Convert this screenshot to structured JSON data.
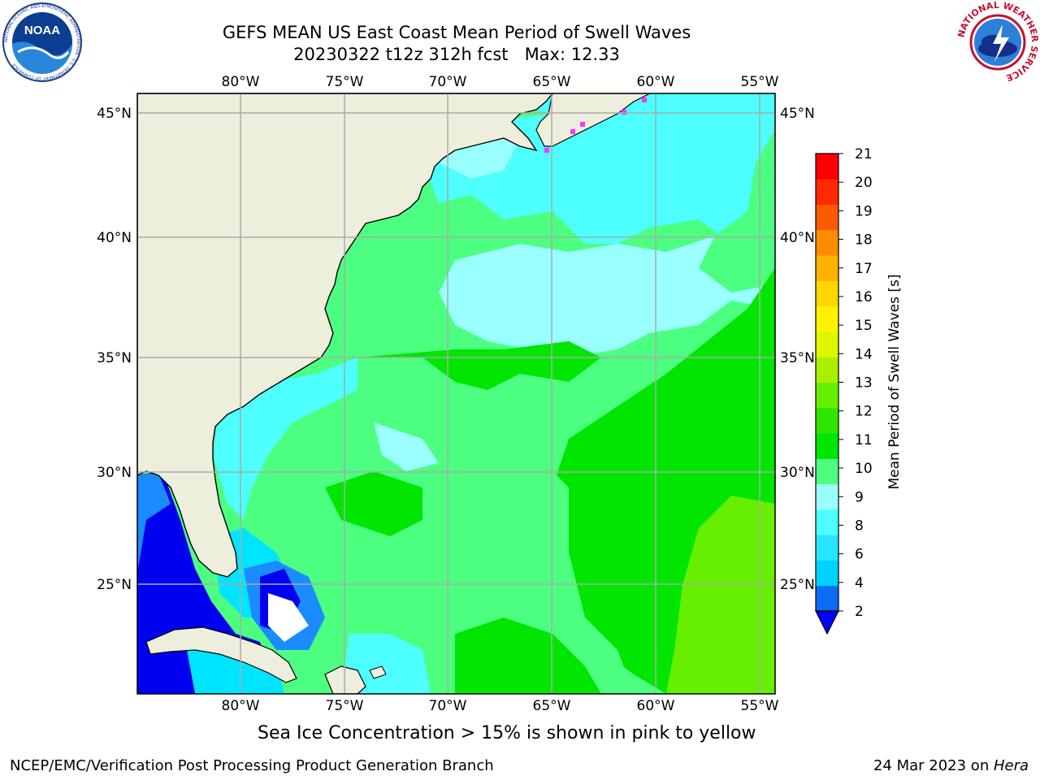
{
  "header": {
    "title_line1": "GEFS MEAN US East Coast Mean Period of Swell Waves",
    "title_line2": "20230322 t12z 312h fcst   Max: 12.33"
  },
  "logos": {
    "left": "NOAA",
    "left_ring_text": "NATIONAL OCEANIC AND ATMOSPHERIC ADMINISTRATION · U.S. DEPARTMENT OF COMMERCE",
    "right_ring_text": "NATIONAL WEATHER SERVICE"
  },
  "axes": {
    "lon_labels": [
      "80°W",
      "75°W",
      "70°W",
      "65°W",
      "60°W",
      "55°W"
    ],
    "lat_labels": [
      "45°N",
      "40°N",
      "35°N",
      "30°N",
      "25°N"
    ]
  },
  "colorbar": {
    "label": "Mean Period of Swell Waves [s]",
    "ticks": [
      "2",
      "4",
      "6",
      "8",
      "9",
      "10",
      "11",
      "12",
      "13",
      "14",
      "15",
      "16",
      "17",
      "18",
      "19",
      "20",
      "21"
    ],
    "colors": [
      "#0a6cf5",
      "#00d2ff",
      "#26e6ff",
      "#4cffff",
      "#99ffff",
      "#4dff80",
      "#00e600",
      "#2ee600",
      "#66ef00",
      "#a8f000",
      "#e0f500",
      "#fff200",
      "#ffd700",
      "#ffb300",
      "#ff8c00",
      "#ff5a00",
      "#ff2a00",
      "#ff0000"
    ],
    "extend_color": "#0000ff"
  },
  "map_colors": {
    "land": "#eeeedc",
    "grid": "#aaaaaa",
    "coast": "#000000",
    "deep_blue": "#0000f0",
    "mid_blue": "#1a8cff",
    "cyan": "#00e5ff",
    "light_cyan": "#4dffff",
    "pale_cyan": "#99ffff",
    "light_green": "#4dff80",
    "green": "#00e600",
    "yellow_green": "#66ef00",
    "white": "#ffffff",
    "ice": "#ff33ff"
  },
  "footer": {
    "ice_note": "Sea Ice Concentration > 15% is shown in pink to yellow",
    "branch": "NCEP/EMC/Verification Post Processing Product Generation Branch",
    "date": "24 Mar 2023 on ",
    "machine": "Hera"
  }
}
